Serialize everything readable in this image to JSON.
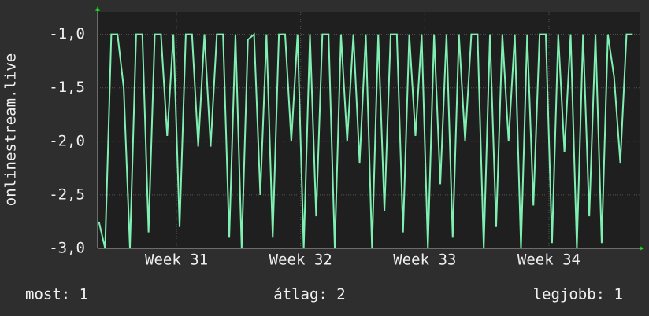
{
  "chart_data": {
    "type": "line",
    "ylabel": "onlinestream.live",
    "x": [
      30.375,
      30.425,
      30.475,
      30.525,
      30.575,
      30.625,
      30.675,
      30.725,
      30.775,
      30.825,
      30.875,
      30.925,
      30.975,
      31.025,
      31.075,
      31.125,
      31.175,
      31.225,
      31.275,
      31.325,
      31.375,
      31.425,
      31.475,
      31.525,
      31.575,
      31.625,
      31.675,
      31.725,
      31.775,
      31.825,
      31.875,
      31.925,
      31.975,
      32.025,
      32.075,
      32.125,
      32.175,
      32.225,
      32.275,
      32.325,
      32.375,
      32.425,
      32.475,
      32.525,
      32.575,
      32.625,
      32.675,
      32.725,
      32.775,
      32.825,
      32.875,
      32.925,
      32.975,
      33.025,
      33.075,
      33.125,
      33.175,
      33.225,
      33.275,
      33.325,
      33.375,
      33.425,
      33.475,
      33.525,
      33.575,
      33.625,
      33.675,
      33.725,
      33.775,
      33.825,
      33.875,
      33.925,
      33.975,
      34.025,
      34.075,
      34.125,
      34.175,
      34.225,
      34.275,
      34.325,
      34.375,
      34.425,
      34.475,
      34.525,
      34.575,
      34.625,
      34.675
    ],
    "series": [
      {
        "color": "#7ff0b2",
        "values": [
          -2.75,
          -3.0,
          -1.0,
          -1.0,
          -1.5,
          -3.0,
          -1.0,
          -1.0,
          -2.85,
          -1.0,
          -1.0,
          -1.95,
          -1.0,
          -2.8,
          -1.0,
          -1.0,
          -2.05,
          -1.0,
          -2.05,
          -1.0,
          -1.0,
          -2.9,
          -1.0,
          -3.0,
          -1.05,
          -1.0,
          -2.5,
          -1.0,
          -2.9,
          -1.0,
          -1.0,
          -2.0,
          -1.0,
          -3.0,
          -1.0,
          -2.7,
          -1.0,
          -1.0,
          -3.0,
          -1.0,
          -2.0,
          -1.0,
          -2.2,
          -1.0,
          -3.0,
          -1.0,
          -2.65,
          -1.0,
          -1.0,
          -2.85,
          -1.0,
          -1.95,
          -1.0,
          -3.0,
          -1.0,
          -2.4,
          -1.0,
          -2.9,
          -1.0,
          -2.0,
          -1.0,
          -1.0,
          -3.0,
          -1.0,
          -2.8,
          -1.0,
          -2.0,
          -1.0,
          -3.0,
          -1.0,
          -2.6,
          -1.0,
          -1.0,
          -2.95,
          -1.0,
          -2.1,
          -1.0,
          -3.0,
          -1.0,
          -2.7,
          -1.0,
          -2.95,
          -1.0,
          -1.4,
          -2.2,
          -1.0,
          -1.0
        ]
      }
    ],
    "xlim": [
      30.365,
      34.73
    ],
    "xticks": [
      {
        "value": 31,
        "label": "Week 31"
      },
      {
        "value": 32,
        "label": "Week 32"
      },
      {
        "value": 33,
        "label": "Week 33"
      },
      {
        "value": 34,
        "label": "Week 34"
      }
    ],
    "ylim": [
      -3.0,
      -0.79
    ],
    "yticks": [
      {
        "value": -3.0,
        "label": "-3,0"
      },
      {
        "value": -2.5,
        "label": "-2,5"
      },
      {
        "value": -2.0,
        "label": "-2,0"
      },
      {
        "value": -1.5,
        "label": "-1,5"
      },
      {
        "value": -1.0,
        "label": "-1,0"
      }
    ],
    "grid": true,
    "stats": [
      "most: 1",
      "átlag: 2",
      "legjobb: 1"
    ]
  }
}
